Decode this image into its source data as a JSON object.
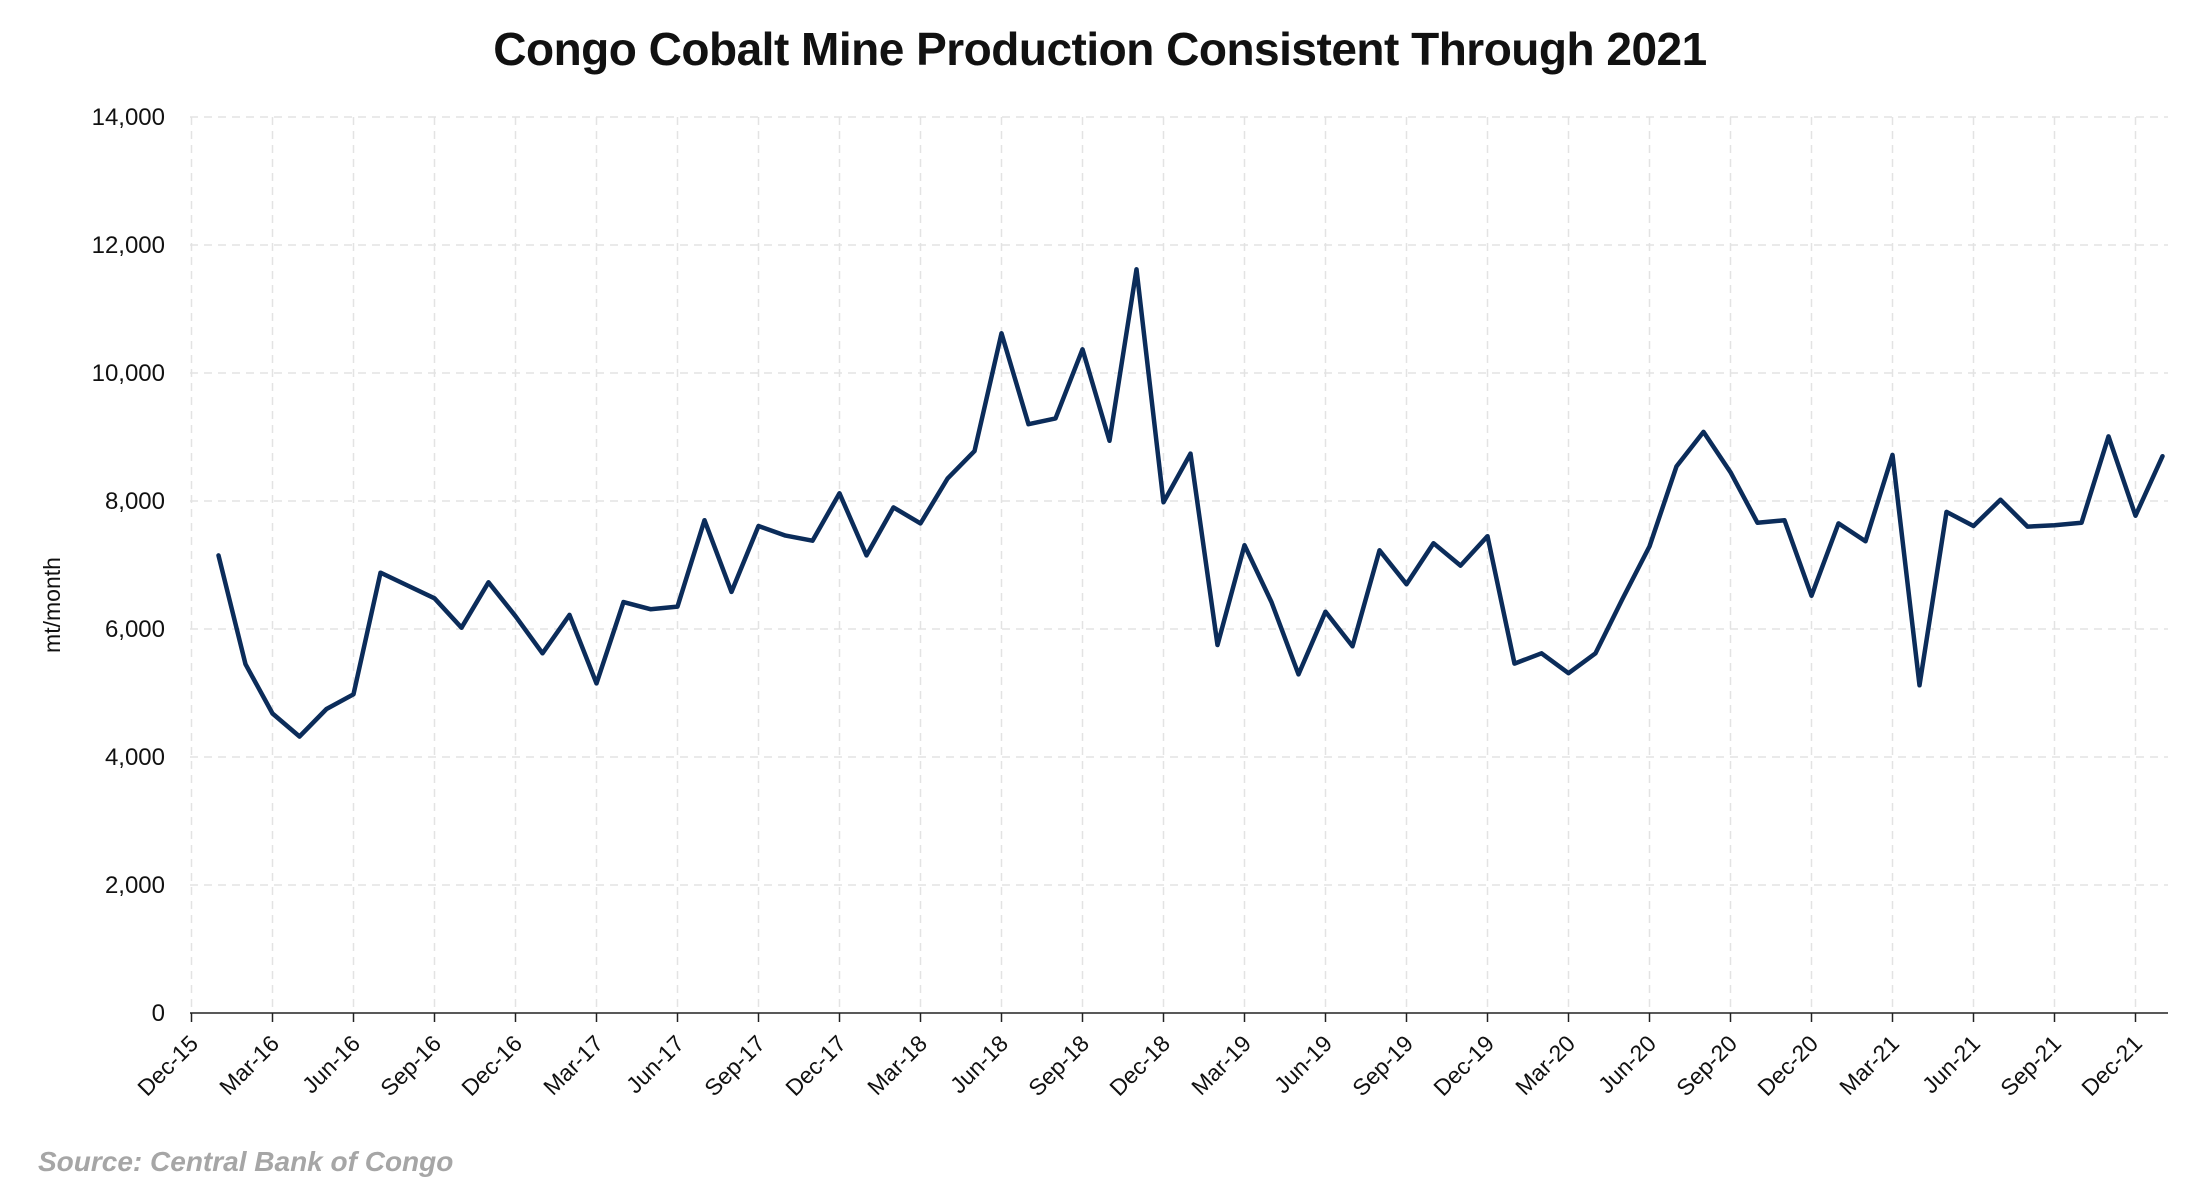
{
  "title": "Congo Cobalt Mine Production Consistent Through 2021",
  "source": "Source: Central Bank of Congo",
  "chart_data": {
    "type": "line",
    "title": "Congo Cobalt Mine Production Consistent Through 2021",
    "xlabel": "",
    "ylabel": "mt/month",
    "ylim": [
      0,
      14000
    ],
    "yticks": [
      0,
      2000,
      4000,
      6000,
      8000,
      10000,
      12000,
      14000
    ],
    "ytick_labels": [
      "0",
      "2,000",
      "4,000",
      "6,000",
      "8,000",
      "10,000",
      "12,000",
      "14,000"
    ],
    "xtick_labels": [
      "Dec-15",
      "Mar-16",
      "Jun-16",
      "Sep-16",
      "Dec-16",
      "Mar-17",
      "Jun-17",
      "Sep-17",
      "Dec-17",
      "Mar-18",
      "Jun-18",
      "Sep-18",
      "Dec-18",
      "Mar-19",
      "Jun-19",
      "Sep-19",
      "Dec-19",
      "Mar-20",
      "Jun-20",
      "Sep-20",
      "Dec-20",
      "Mar-21",
      "Jun-21",
      "Sep-21",
      "Dec-21"
    ],
    "grid": true,
    "line_color": "#0b2c5a",
    "x": [
      "Jan-16",
      "Feb-16",
      "Mar-16",
      "Apr-16",
      "May-16",
      "Jun-16",
      "Jul-16",
      "Aug-16",
      "Sep-16",
      "Oct-16",
      "Nov-16",
      "Dec-16",
      "Jan-17",
      "Feb-17",
      "Mar-17",
      "Apr-17",
      "May-17",
      "Jun-17",
      "Jul-17",
      "Aug-17",
      "Sep-17",
      "Oct-17",
      "Nov-17",
      "Dec-17",
      "Jan-18",
      "Feb-18",
      "Mar-18",
      "Apr-18",
      "May-18",
      "Jun-18",
      "Jul-18",
      "Aug-18",
      "Sep-18",
      "Oct-18",
      "Nov-18",
      "Dec-18",
      "Jan-19",
      "Feb-19",
      "Mar-19",
      "Apr-19",
      "May-19",
      "Jun-19",
      "Jul-19",
      "Aug-19",
      "Sep-19",
      "Oct-19",
      "Nov-19",
      "Dec-19",
      "Jan-20",
      "Feb-20",
      "Mar-20",
      "Apr-20",
      "May-20",
      "Jun-20",
      "Jul-20",
      "Aug-20",
      "Sep-20",
      "Oct-20",
      "Nov-20",
      "Dec-20",
      "Jan-21",
      "Feb-21",
      "Mar-21",
      "Apr-21",
      "May-21",
      "Jun-21",
      "Jul-21",
      "Aug-21",
      "Sep-21",
      "Oct-21",
      "Nov-21",
      "Dec-21",
      "Jan-22"
    ],
    "series": [
      {
        "values": [
          7150,
          5450,
          4680,
          4320,
          4750,
          4980,
          6880,
          6680,
          6480,
          6020,
          6730,
          6200,
          5620,
          6220,
          5150,
          6420,
          6310,
          6350,
          7700,
          6580,
          7610,
          7460,
          7380,
          8120,
          7150,
          7900,
          7650,
          8350,
          8780,
          10620,
          9200,
          9290,
          10370,
          8940,
          11620,
          7980,
          8740,
          5750,
          7310,
          6420,
          5290,
          6270,
          5730,
          7230,
          6700,
          7340,
          6990,
          7450,
          5460,
          5620,
          5310,
          5620,
          6470,
          7290,
          8540,
          9080,
          8450,
          7660,
          7700,
          6520,
          7650,
          7370,
          8720,
          5120,
          7830,
          7610,
          8020,
          7600,
          7620,
          7660,
          9010,
          7770,
          8700
        ]
      }
    ]
  }
}
